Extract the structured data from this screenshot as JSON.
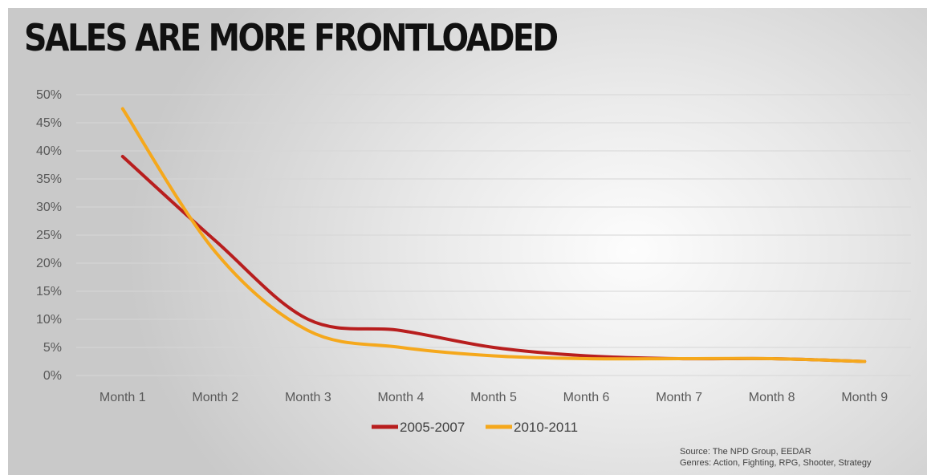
{
  "title": "SALES ARE MORE FRONTLOADED",
  "source": {
    "line1": "Source: The NPD Group, EEDAR",
    "line2": "Genres: Action, Fighting, RPG, Shooter, Strategy"
  },
  "colors": {
    "series_2005_2007": "#b81e1e",
    "series_2010_2011": "#f5a81c",
    "grid": "#d6d6d6"
  },
  "chart_data": {
    "type": "line",
    "categories": [
      "Month 1",
      "Month 2",
      "Month 3",
      "Month 4",
      "Month 5",
      "Month 6",
      "Month 7",
      "Month 8",
      "Month 9"
    ],
    "series": [
      {
        "name": "2005-2007",
        "values": [
          39,
          24,
          10,
          8,
          5,
          3.5,
          3,
          3,
          2.5
        ]
      },
      {
        "name": "2010-2011",
        "values": [
          47.5,
          22,
          8,
          5,
          3.5,
          3,
          3,
          3,
          2.5
        ]
      }
    ],
    "y_ticks": [
      "0%",
      "5%",
      "10%",
      "15%",
      "20%",
      "25%",
      "30%",
      "35%",
      "40%",
      "45%",
      "50%"
    ],
    "ylim": [
      0,
      50
    ],
    "grid": true,
    "legend": "bottom"
  }
}
